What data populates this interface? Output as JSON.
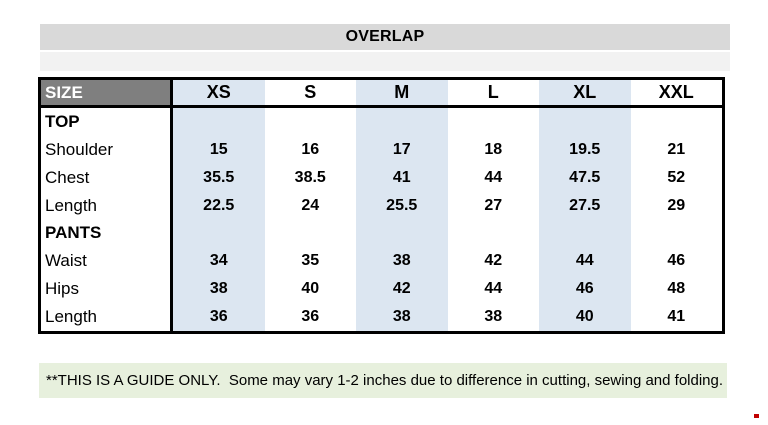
{
  "title": "OVERLAP",
  "table": {
    "size_label": "SIZE",
    "columns": [
      "XS",
      "S",
      "M",
      "L",
      "XL",
      "XXL"
    ],
    "striped_column_indexes": [
      0,
      2,
      4
    ],
    "rows": [
      {
        "label": "TOP",
        "section": true,
        "values": [
          "",
          "",
          "",
          "",
          "",
          ""
        ]
      },
      {
        "label": "Shoulder",
        "section": false,
        "values": [
          "15",
          "16",
          "17",
          "18",
          "19.5",
          "21"
        ]
      },
      {
        "label": "Chest",
        "section": false,
        "values": [
          "35.5",
          "38.5",
          "41",
          "44",
          "47.5",
          "52"
        ]
      },
      {
        "label": "Length",
        "section": false,
        "values": [
          "22.5",
          "24",
          "25.5",
          "27",
          "27.5",
          "29"
        ]
      },
      {
        "label": "PANTS",
        "section": true,
        "values": [
          "",
          "",
          "",
          "",
          "",
          ""
        ]
      },
      {
        "label": "Waist",
        "section": false,
        "values": [
          "34",
          "35",
          "38",
          "42",
          "44",
          "46"
        ]
      },
      {
        "label": "Hips",
        "section": false,
        "values": [
          "38",
          "40",
          "42",
          "44",
          "46",
          "48"
        ]
      },
      {
        "label": "Length",
        "section": false,
        "values": [
          "36",
          "36",
          "38",
          "38",
          "40",
          "41"
        ]
      }
    ]
  },
  "note": "**THIS IS A GUIDE ONLY.  Some may vary 1-2 inches due to difference in cutting, sewing and folding.",
  "colors": {
    "title_bg": "#d9d9d9",
    "subtitle_strip_bg": "#f2f2f2",
    "size_header_bg": "#7f7f7f",
    "size_header_text": "#ffffff",
    "stripe_blue": "#dce6f1",
    "note_bg": "#e7f0dd",
    "border_black": "#000000",
    "red_dot": "#c00000"
  }
}
